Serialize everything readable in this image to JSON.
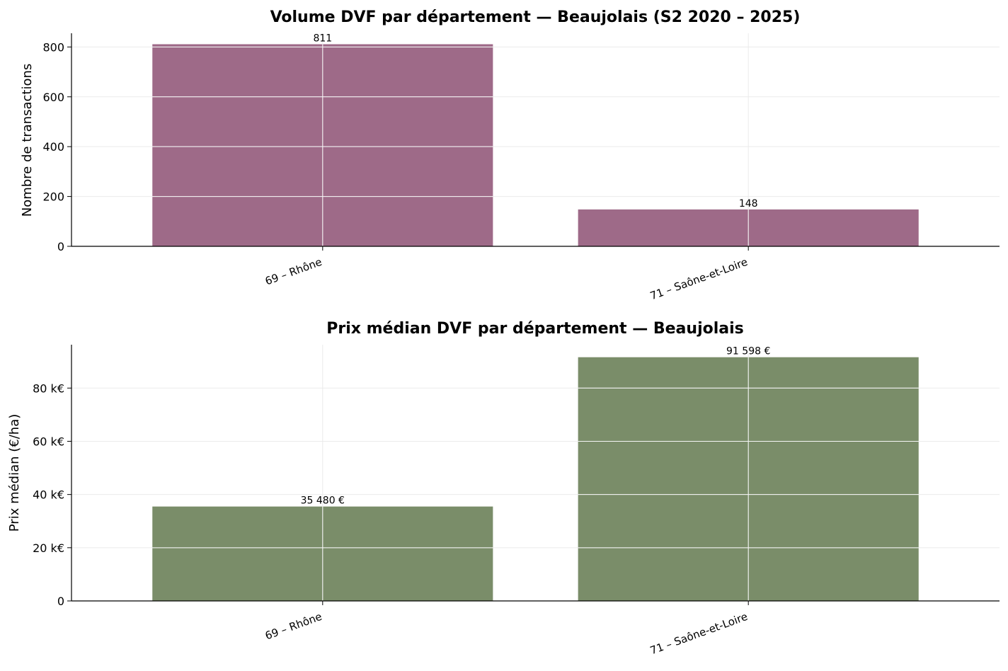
{
  "chart_data": [
    {
      "type": "bar",
      "title": "Volume DVF par département — Beaujolais (S2 2020 – 2025)",
      "xlabel": "",
      "ylabel": "Nombre de transactions",
      "categories": [
        "69 – Rhône",
        "71 – Saône-et-Loire"
      ],
      "values": [
        811,
        148
      ],
      "value_labels": [
        "811",
        "148"
      ],
      "ylim": [
        0,
        855
      ],
      "yticks": [
        0,
        200,
        400,
        600,
        800
      ],
      "ytick_labels": [
        "0",
        "200",
        "400",
        "600",
        "800"
      ],
      "color": "#9e6a88",
      "grid": true
    },
    {
      "type": "bar",
      "title": "Prix médian DVF par département — Beaujolais",
      "xlabel": "",
      "ylabel": "Prix médian (€/ha)",
      "categories": [
        "69 – Rhône",
        "71 – Saône-et-Loire"
      ],
      "values": [
        35480,
        91598
      ],
      "value_labels": [
        "35 480 €",
        "91 598 €"
      ],
      "ylim": [
        0,
        96300
      ],
      "yticks": [
        0,
        20000,
        40000,
        60000,
        80000
      ],
      "ytick_labels": [
        "0",
        "20 k€",
        "40 k€",
        "60 k€",
        "80 k€"
      ],
      "color": "#7a8d69",
      "grid": true
    }
  ]
}
